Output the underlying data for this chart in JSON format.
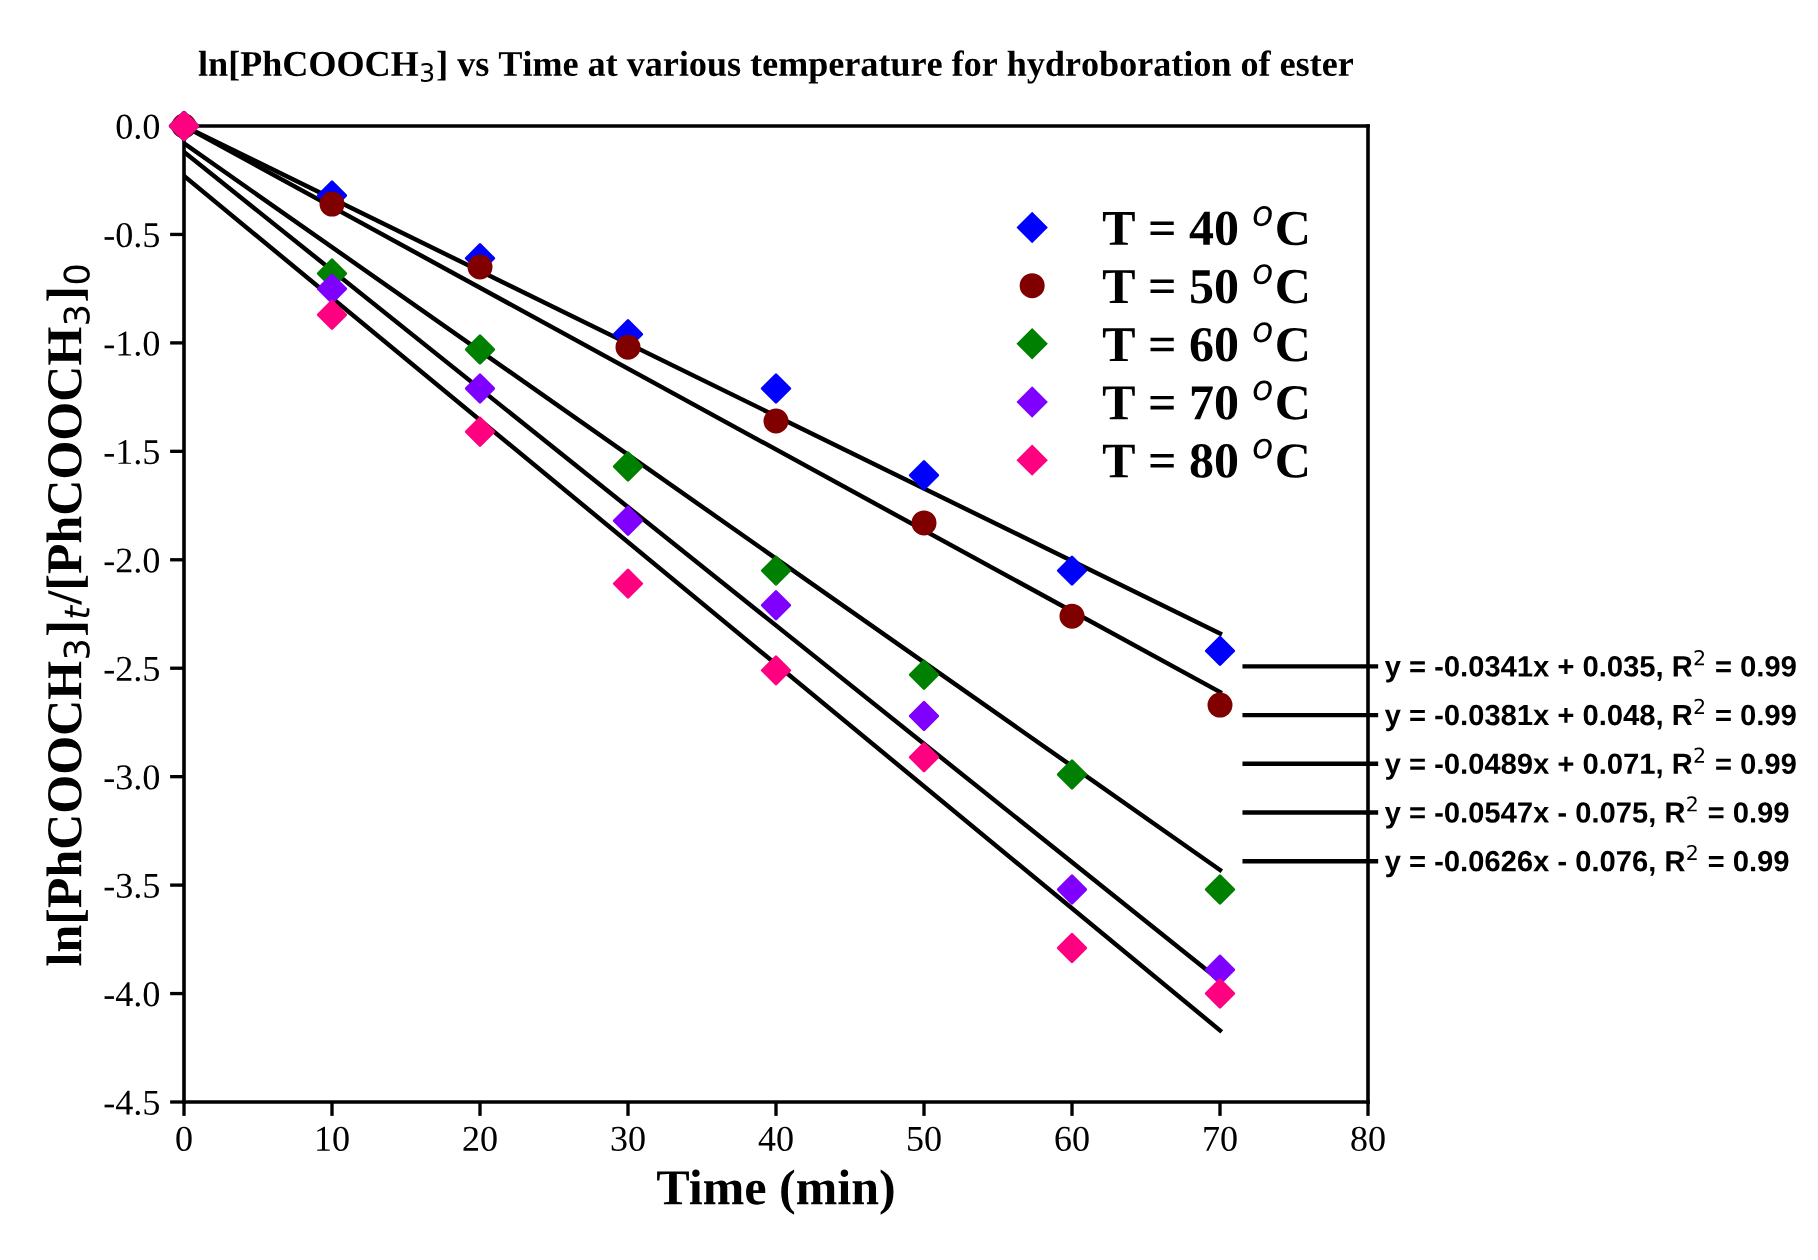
{
  "chart_data": {
    "type": "scatter",
    "title": "ln[PhCOOCH$_{3}$] vs Time at various temperature for hydroboration of ester",
    "xlabel": "Time (min)",
    "ylabel": "ln[PhCOOCH$_{3}$]$_{t}$/[PhCOOCH$_{3}$]$_{0}$",
    "x": [
      0,
      10,
      20,
      30,
      40,
      50,
      60,
      70
    ],
    "series": [
      {
        "name": "T = 40 $^{o}$C",
        "color": "#0000ff",
        "marker": "diamond",
        "values": [
          0,
          -0.32,
          -0.61,
          -0.96,
          -1.21,
          -1.61,
          -2.05,
          -2.42
        ]
      },
      {
        "name": "T = 50 $^{o}$C",
        "color": "#800000",
        "marker": "circle",
        "values": [
          0,
          -0.36,
          -0.65,
          -1.02,
          -1.36,
          -1.83,
          -2.26,
          -2.67
        ]
      },
      {
        "name": "T = 60 $^{o}$C",
        "color": "#008000",
        "marker": "diamond",
        "values": [
          0,
          -0.68,
          -1.03,
          -1.57,
          -2.05,
          -2.53,
          -2.99,
          -3.52
        ]
      },
      {
        "name": "T = 70 $^{o}$C",
        "color": "#8000ff",
        "marker": "diamond",
        "values": [
          0,
          -0.75,
          -1.21,
          -1.82,
          -2.21,
          -2.72,
          -3.52,
          -3.89
        ]
      },
      {
        "name": "T = 80 $^{o}$C",
        "color": "#ff0080",
        "marker": "diamond",
        "values": [
          0,
          -0.87,
          -1.41,
          -2.11,
          -2.51,
          -2.91,
          -3.79,
          -4.0
        ]
      },
      {
        "type": "line",
        "name": "y = -0.0341x + 0.035, R$^{2}$ = 0.99",
        "color": "#000000",
        "values": [
          0.0,
          null,
          null,
          null,
          null,
          null,
          null,
          -2.34
        ]
      },
      {
        "type": "line",
        "name": "y = -0.0381x + 0.048, R$^{2}$ = 0.99",
        "color": "#000000",
        "values": [
          0.0,
          null,
          null,
          null,
          null,
          null,
          null,
          -2.61
        ]
      },
      {
        "type": "line",
        "name": "y = -0.0489x + 0.071, R$^{2}$ = 0.99",
        "color": "#000000",
        "values": [
          -0.08,
          null,
          null,
          null,
          null,
          null,
          null,
          -3.43
        ]
      },
      {
        "type": "line",
        "name": "y = -0.0547x - 0.075, R$^{2}$ = 0.99",
        "color": "#000000",
        "values": [
          -0.12,
          null,
          null,
          null,
          null,
          null,
          null,
          -3.94
        ]
      },
      {
        "type": "line",
        "name": "y = -0.0626x - 0.076, R$^{2}$ = 0.99",
        "color": "#000000",
        "values": [
          -0.23,
          null,
          null,
          null,
          null,
          null,
          null,
          -4.17
        ]
      }
    ],
    "xlim": [
      0,
      80
    ],
    "xticks": [
      0,
      10,
      20,
      30,
      40,
      50,
      60,
      70,
      80
    ],
    "ylim": [
      -4.5,
      0
    ],
    "yticks": [
      {
        "value": 0,
        "label": "0.0"
      },
      {
        "value": -0.5,
        "label": "-0.5"
      },
      {
        "value": -1,
        "label": "-1.0"
      },
      {
        "value": -1.5,
        "label": "-1.5"
      },
      {
        "value": -2,
        "label": "-2.0"
      },
      {
        "value": -2.5,
        "label": "-2.5"
      },
      {
        "value": -3,
        "label": "-3.0"
      },
      {
        "value": -3.5,
        "label": "-3.5"
      },
      {
        "value": -4,
        "label": "-4.0"
      },
      {
        "value": -4.5,
        "label": "-4.5"
      }
    ],
    "grid": false,
    "legend": "top right"
  }
}
